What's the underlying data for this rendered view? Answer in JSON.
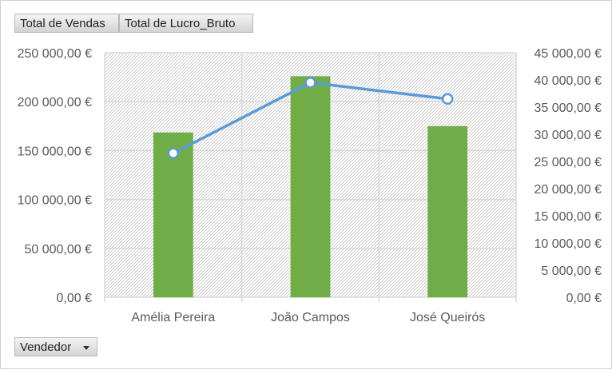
{
  "field_buttons": {
    "total_vendas": "Total de Vendas",
    "total_lucro": "Total de Lucro_Bruto",
    "vendedor": "Vendedor"
  },
  "chart_data": {
    "type": "bar",
    "categories": [
      "Amélia Pereira",
      "João Campos",
      "José Queirós"
    ],
    "series": [
      {
        "name": "Total de Vendas",
        "type": "bar",
        "axis": "left",
        "color": "#70ad47",
        "values": [
          168500,
          226000,
          175000
        ]
      },
      {
        "name": "Total de Lucro_Bruto",
        "type": "line",
        "axis": "right",
        "color": "#5b9bd5",
        "values": [
          26500,
          39500,
          36500
        ]
      }
    ],
    "y_left": {
      "min": 0,
      "max": 250000,
      "step": 50000,
      "tick_labels": [
        "0,00 €",
        "50 000,00 €",
        "100 000,00 €",
        "150 000,00 €",
        "200 000,00 €",
        "250 000,00 €"
      ]
    },
    "y_right": {
      "min": 0,
      "max": 45000,
      "step": 5000,
      "tick_labels": [
        "0,00 €",
        "5 000,00 €",
        "10 000,00 €",
        "15 000,00 €",
        "20 000,00 €",
        "25 000,00 €",
        "30 000,00 €",
        "35 000,00 €",
        "40 000,00 €",
        "45 000,00 €"
      ]
    },
    "grid": true,
    "plot_background": "hatched gray"
  }
}
